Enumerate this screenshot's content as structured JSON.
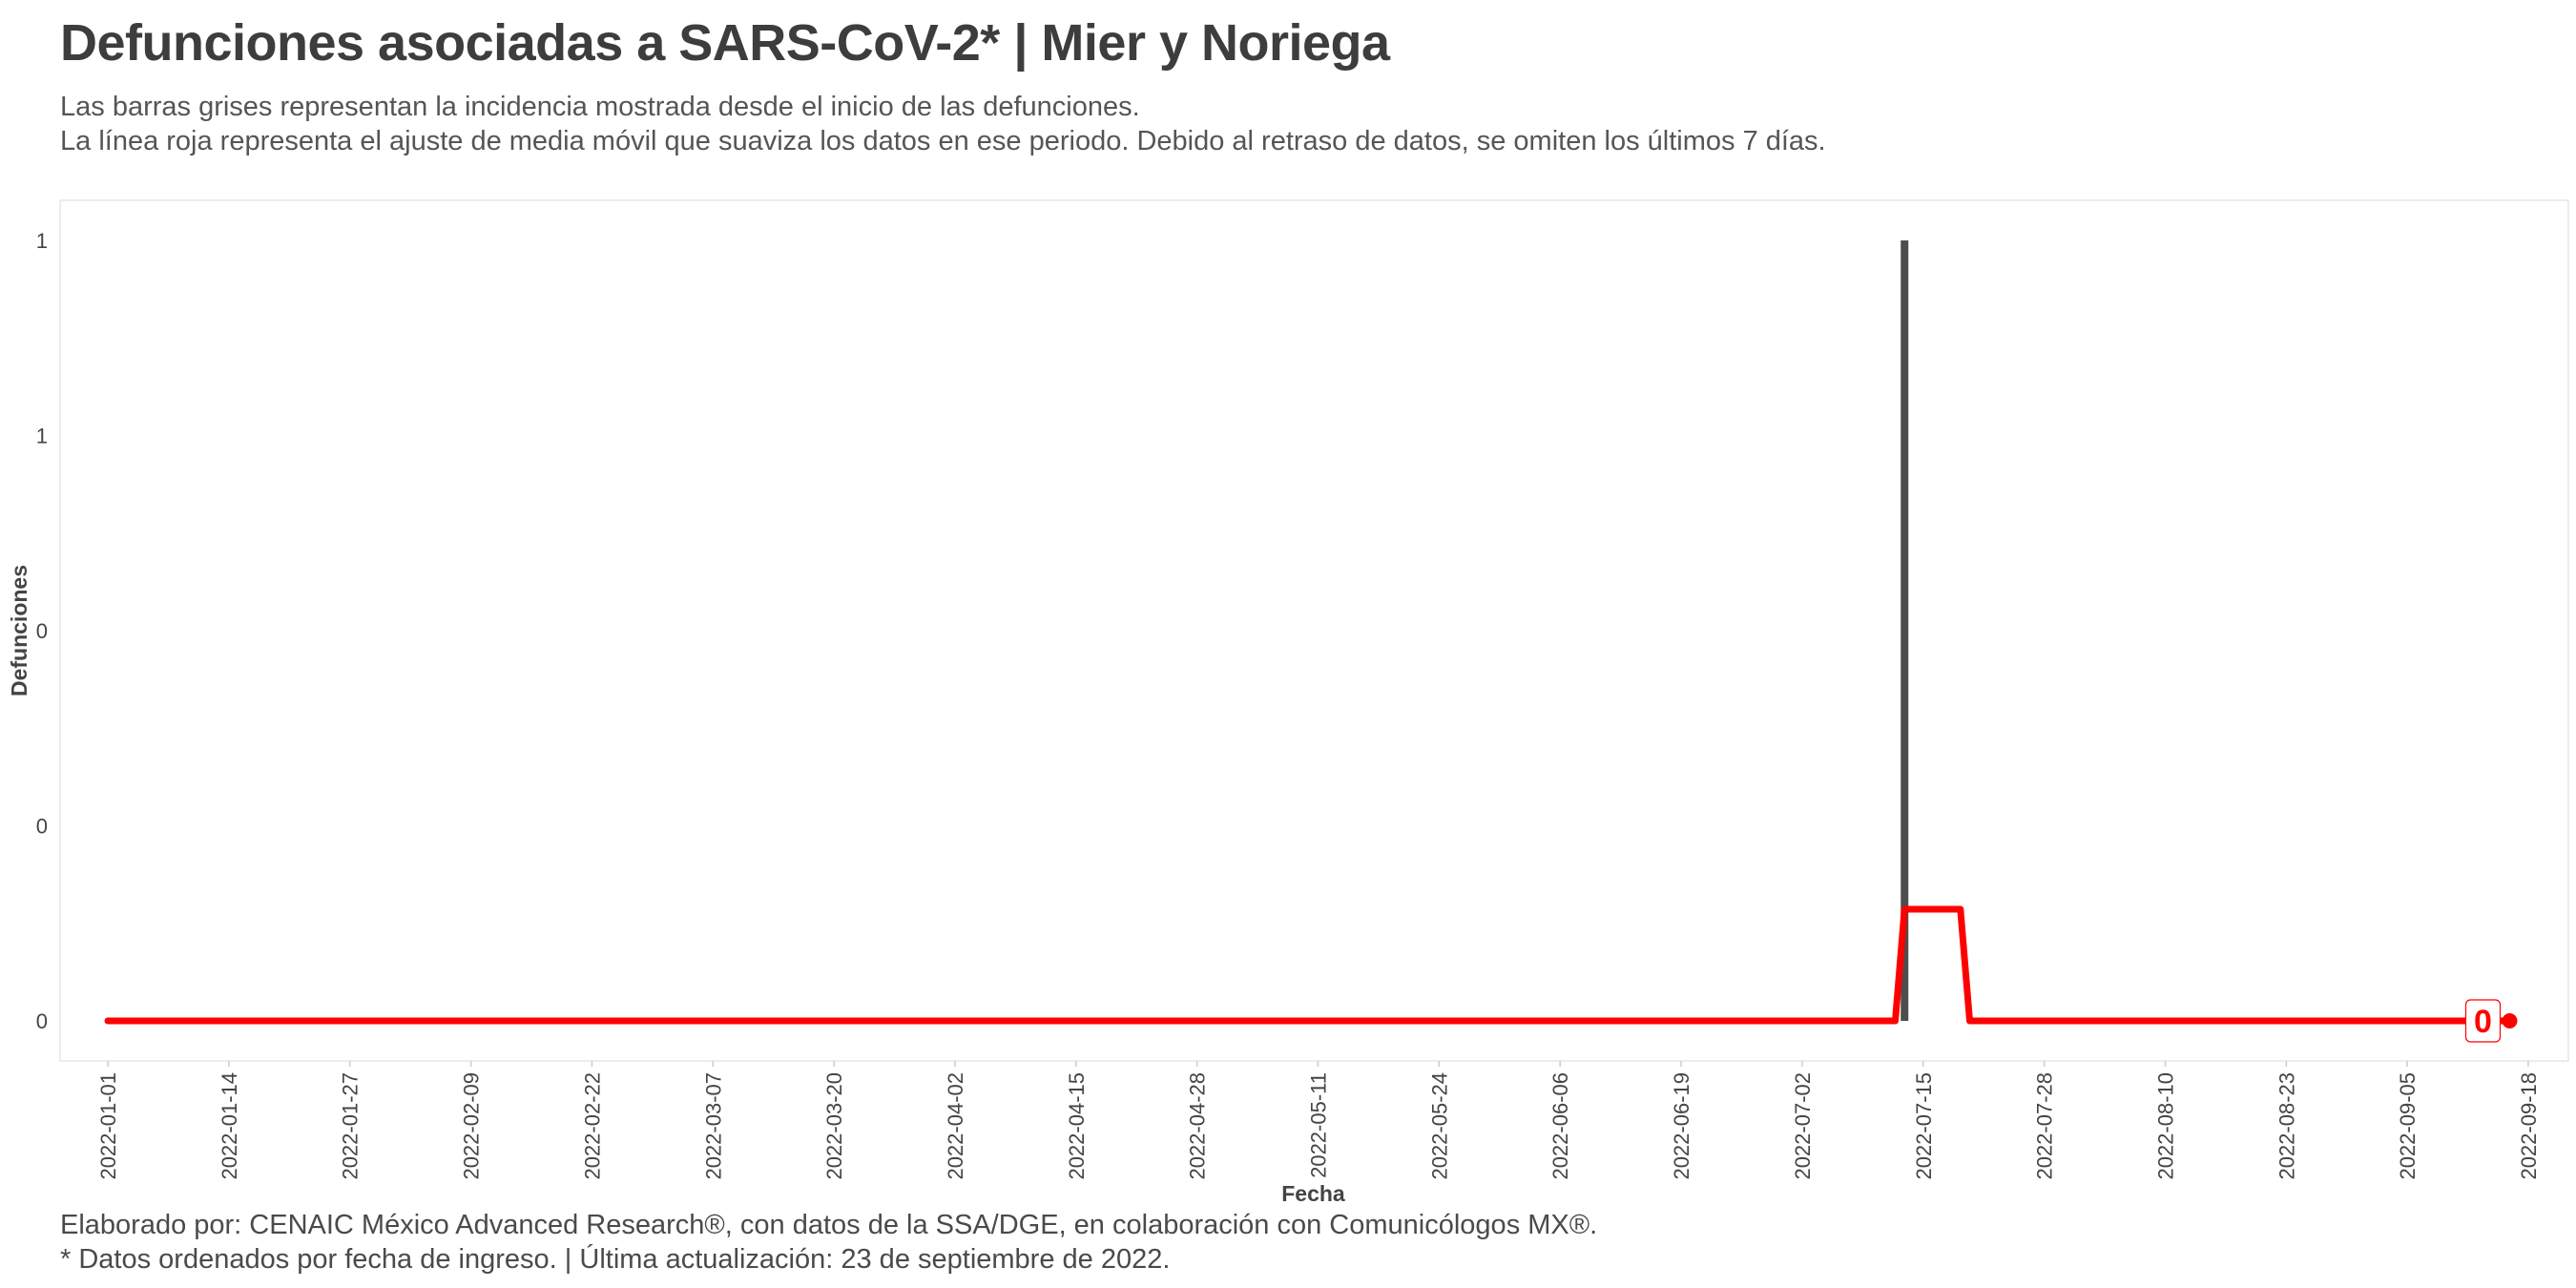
{
  "header": {
    "title": "Defunciones asociadas a SARS-CoV-2* | Mier y Noriega",
    "subtitle_line1": "Las barras grises representan la incidencia mostrada desde el inicio de las defunciones.",
    "subtitle_line2": "La línea roja representa el ajuste de media móvil que suaviza los datos en ese periodo. Debido al retraso de datos, se omiten los últimos 7 días."
  },
  "footer": {
    "caption_line1": "Elaborado por: CENAIC México Advanced Research®, con datos de la SSA/DGE, en colaboración con Comunicólogos MX®.",
    "caption_line2": "* Datos ordenados por fecha de ingreso. | Última actualización: 23 de septiembre de 2022."
  },
  "colors": {
    "bar": "#4d4d4d",
    "moving_average": "#ff0000",
    "panel_border": "#e6e6e6"
  },
  "chart_data": {
    "type": "bar",
    "xlabel": "Fecha",
    "ylabel": "Defunciones",
    "x_range": [
      "2022-01-01",
      "2022-09-18"
    ],
    "ylim": [
      0,
      1
    ],
    "y_ticks": [
      {
        "value": 0,
        "label": "0"
      },
      {
        "value": 0.25,
        "label": "0"
      },
      {
        "value": 0.5,
        "label": "0"
      },
      {
        "value": 0.75,
        "label": "1"
      },
      {
        "value": 1,
        "label": "1"
      }
    ],
    "x_ticks": [
      "2022-01-01",
      "2022-01-14",
      "2022-01-27",
      "2022-02-09",
      "2022-02-22",
      "2022-03-07",
      "2022-03-20",
      "2022-04-02",
      "2022-04-15",
      "2022-04-28",
      "2022-05-11",
      "2022-05-24",
      "2022-06-06",
      "2022-06-19",
      "2022-07-02",
      "2022-07-15",
      "2022-07-28",
      "2022-08-10",
      "2022-08-23",
      "2022-09-05",
      "2022-09-18"
    ],
    "bars": [
      {
        "date": "2022-07-13",
        "value": 1
      }
    ],
    "moving_average": [
      {
        "date": "2022-01-01",
        "value": 0
      },
      {
        "date": "2022-07-12",
        "value": 0
      },
      {
        "date": "2022-07-13",
        "value": 0.143
      },
      {
        "date": "2022-07-19",
        "value": 0.143
      },
      {
        "date": "2022-07-20",
        "value": 0
      },
      {
        "date": "2022-09-16",
        "value": 0
      }
    ],
    "end_label": "0",
    "legend": "none",
    "grid": false
  }
}
